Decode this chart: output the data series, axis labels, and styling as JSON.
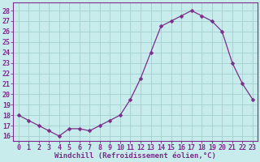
{
  "x": [
    0,
    1,
    2,
    3,
    4,
    5,
    6,
    7,
    8,
    9,
    10,
    11,
    12,
    13,
    14,
    15,
    16,
    17,
    18,
    19,
    20,
    21,
    22,
    23
  ],
  "y": [
    18.0,
    17.5,
    17.0,
    16.5,
    16.0,
    16.7,
    16.7,
    16.5,
    17.0,
    17.5,
    18.0,
    19.5,
    21.5,
    24.0,
    26.5,
    27.0,
    27.5,
    28.0,
    27.5,
    27.0,
    26.0,
    23.0,
    21.0,
    19.5
  ],
  "line_color": "#7b2d8b",
  "marker": "D",
  "marker_size": 2.5,
  "bg_color": "#c8ecec",
  "grid_color": "#aad4d4",
  "xlabel": "Windchill (Refroidissement éolien,°C)",
  "ylabel_ticks": [
    16,
    17,
    18,
    19,
    20,
    21,
    22,
    23,
    24,
    25,
    26,
    27,
    28
  ],
  "xlim": [
    -0.5,
    23.5
  ],
  "ylim": [
    15.5,
    28.8
  ],
  "xlabel_fontsize": 6.5,
  "tick_fontsize": 6.0,
  "label_color": "#7b2d8b",
  "spine_color": "#7b2d8b",
  "figsize": [
    3.2,
    2.0
  ],
  "dpi": 100
}
